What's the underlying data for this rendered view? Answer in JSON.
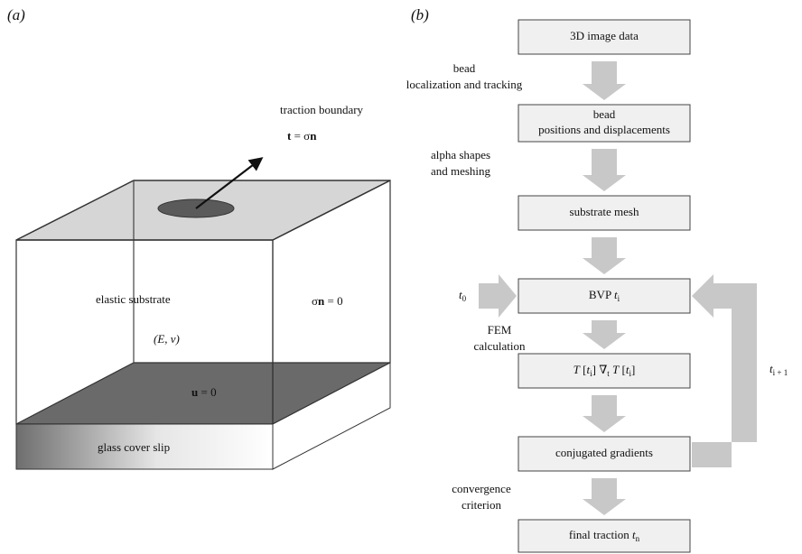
{
  "panels": {
    "a": "(a)",
    "b": "(b)"
  },
  "panel_a": {
    "traction_boundary": "traction boundary",
    "traction_eq": [
      {
        "text": "t",
        "style": "bold"
      },
      {
        "text": " = σ",
        "style": "normal"
      },
      {
        "text": "n",
        "style": "bold"
      }
    ],
    "elastic": "elastic substrate",
    "moduli": "(E, ν)",
    "side_bc": [
      {
        "text": "σ",
        "style": "normal"
      },
      {
        "text": "n",
        "style": "bold"
      },
      {
        "text": " = 0",
        "style": "normal"
      }
    ],
    "bottom_bc": [
      {
        "text": "u",
        "style": "bold"
      },
      {
        "text": " = 0",
        "style": "normal"
      }
    ],
    "glass": "glass cover slip"
  },
  "panel_b": {
    "nodes": [
      {
        "lines": [
          "3D image data"
        ]
      },
      {
        "lines": [
          "bead",
          "positions and displacements"
        ]
      },
      {
        "lines": [
          "substrate mesh"
        ]
      },
      {
        "parts": [
          {
            "text": "BVP ",
            "style": "normal"
          },
          {
            "text": "t",
            "style": "italic"
          },
          {
            "text": "i",
            "style": "sub"
          }
        ]
      },
      {
        "parts": [
          {
            "text": "T",
            "style": "italic"
          },
          {
            "text": " [",
            "style": "normal"
          },
          {
            "text": "t",
            "style": "italic"
          },
          {
            "text": "i",
            "style": "sub"
          },
          {
            "text": "] ∇",
            "style": "normal"
          },
          {
            "text": "t",
            "style": "sub"
          },
          {
            "text": " T",
            "style": "italic"
          },
          {
            "text": " [",
            "style": "normal"
          },
          {
            "text": "t",
            "style": "italic"
          },
          {
            "text": "i",
            "style": "sub"
          },
          {
            "text": "]",
            "style": "normal"
          }
        ]
      },
      {
        "lines": [
          "conjugated gradients"
        ]
      },
      {
        "parts": [
          {
            "text": "final traction ",
            "style": "normal"
          },
          {
            "text": "t",
            "style": "italic"
          },
          {
            "text": "n",
            "style": "sub"
          }
        ]
      }
    ],
    "edge_labels": [
      {
        "lines": [
          "bead",
          "localization and tracking"
        ]
      },
      {
        "lines": [
          "alpha shapes",
          "and meshing"
        ]
      },
      {
        "lines": [
          "FEM",
          "calculation"
        ]
      },
      {
        "lines": [
          "convergence",
          "criterion"
        ]
      }
    ],
    "t_start": [
      {
        "text": "t",
        "style": "italic"
      },
      {
        "text": "0",
        "style": "sub"
      }
    ],
    "t_next": [
      {
        "text": "t",
        "style": "italic"
      },
      {
        "text": "i + 1",
        "style": "sub"
      }
    ]
  }
}
